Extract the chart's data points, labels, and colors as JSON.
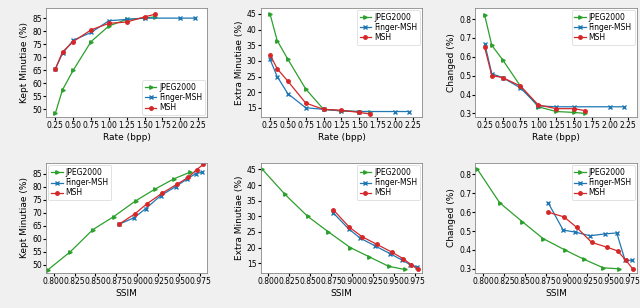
{
  "top_row": {
    "plot1": {
      "xlabel": "Rate (bpp)",
      "ylabel": "Kept Minutiae (%)",
      "xlim": [
        0.12,
        2.38
      ],
      "ylim": [
        47,
        89
      ],
      "xticks": [
        0.25,
        0.5,
        0.75,
        1.0,
        1.25,
        1.5,
        1.75,
        2.0,
        2.25
      ],
      "yticks": [
        50,
        55,
        60,
        65,
        70,
        75,
        80,
        85
      ],
      "series": {
        "JPEG2000": {
          "x": [
            0.25,
            0.35,
            0.5,
            0.75,
            1.0,
            1.25,
            1.5,
            1.65
          ],
          "y": [
            48.5,
            57.5,
            65.0,
            76.0,
            82.0,
            84.5,
            85.0,
            85.5
          ],
          "color": "#2ca02c",
          "marker": ">"
        },
        "Finger-MSH": {
          "x": [
            0.25,
            0.35,
            0.5,
            0.75,
            1.0,
            1.25,
            1.5,
            2.0,
            2.2
          ],
          "y": [
            65.5,
            71.5,
            76.5,
            79.5,
            84.0,
            84.5,
            85.0,
            85.0,
            85.0
          ],
          "color": "#1f77b4",
          "marker": "x"
        },
        "MSH": {
          "x": [
            0.25,
            0.35,
            0.5,
            0.75,
            1.0,
            1.25,
            1.5,
            1.65
          ],
          "y": [
            65.5,
            72.0,
            76.0,
            80.5,
            83.0,
            83.5,
            85.5,
            86.5
          ],
          "color": "#d62728",
          "marker": "o"
        }
      },
      "legend_loc": "lower right"
    },
    "plot2": {
      "xlabel": "Rate (bpp)",
      "ylabel": "Extra Minutiae (%)",
      "xlim": [
        0.12,
        2.38
      ],
      "ylim": [
        12,
        47
      ],
      "xticks": [
        0.25,
        0.5,
        0.75,
        1.0,
        1.25,
        1.5,
        1.75,
        2.0,
        2.25
      ],
      "yticks": [
        15,
        20,
        25,
        30,
        35,
        40,
        45
      ],
      "series": {
        "JPEG2000": {
          "x": [
            0.25,
            0.35,
            0.5,
            0.75,
            1.0,
            1.25,
            1.5,
            1.65
          ],
          "y": [
            45.0,
            36.5,
            30.5,
            21.0,
            14.5,
            14.0,
            13.8,
            13.8
          ],
          "color": "#2ca02c",
          "marker": ">"
        },
        "Finger-MSH": {
          "x": [
            0.25,
            0.35,
            0.5,
            0.75,
            1.0,
            1.25,
            1.5,
            2.0,
            2.2
          ],
          "y": [
            30.5,
            25.0,
            19.5,
            15.0,
            14.5,
            14.0,
            13.8,
            13.8,
            13.8
          ],
          "color": "#1f77b4",
          "marker": "x"
        },
        "MSH": {
          "x": [
            0.25,
            0.35,
            0.5,
            0.75,
            1.0,
            1.25,
            1.5,
            1.65
          ],
          "y": [
            32.0,
            27.5,
            23.5,
            16.5,
            14.5,
            14.2,
            13.5,
            13.0
          ],
          "color": "#d62728",
          "marker": "o"
        }
      },
      "legend_loc": "upper right"
    },
    "plot3": {
      "xlabel": "Rate (bpp)",
      "ylabel": "Changed (%)",
      "xlim": [
        0.12,
        2.38
      ],
      "ylim": [
        0.28,
        0.86
      ],
      "xticks": [
        0.25,
        0.5,
        0.75,
        1.0,
        1.25,
        1.5,
        1.75,
        2.0,
        2.25
      ],
      "yticks": [
        0.3,
        0.4,
        0.5,
        0.6,
        0.7,
        0.8
      ],
      "series": {
        "JPEG2000": {
          "x": [
            0.25,
            0.35,
            0.5,
            0.75,
            1.0,
            1.25,
            1.5,
            1.65
          ],
          "y": [
            0.82,
            0.66,
            0.585,
            0.445,
            0.335,
            0.31,
            0.305,
            0.3
          ],
          "color": "#2ca02c",
          "marker": ">"
        },
        "Finger-MSH": {
          "x": [
            0.25,
            0.35,
            0.5,
            0.75,
            1.0,
            1.25,
            1.5,
            2.0,
            2.2
          ],
          "y": [
            0.67,
            0.51,
            0.49,
            0.435,
            0.34,
            0.335,
            0.335,
            0.335,
            0.335
          ],
          "color": "#1f77b4",
          "marker": "x"
        },
        "MSH": {
          "x": [
            0.25,
            0.35,
            0.5,
            0.75,
            1.0,
            1.25,
            1.5,
            1.65
          ],
          "y": [
            0.65,
            0.5,
            0.49,
            0.445,
            0.345,
            0.325,
            0.325,
            0.315
          ],
          "color": "#d62728",
          "marker": "o"
        }
      },
      "legend_loc": "upper right"
    }
  },
  "bottom_row": {
    "plot4": {
      "xlabel": "SSIM",
      "ylabel": "Kept Minutiae (%)",
      "xlim": [
        0.791,
        0.984
      ],
      "ylim": [
        47,
        89
      ],
      "xticks": [
        0.8,
        0.825,
        0.85,
        0.875,
        0.9,
        0.925,
        0.95,
        0.975
      ],
      "yticks": [
        50,
        55,
        60,
        65,
        70,
        75,
        80,
        85
      ],
      "series": {
        "JPEG2000": {
          "x": [
            0.793,
            0.82,
            0.847,
            0.872,
            0.898,
            0.921,
            0.944,
            0.963
          ],
          "y": [
            48.0,
            55.0,
            63.5,
            68.5,
            74.5,
            79.0,
            83.0,
            85.5
          ],
          "color": "#2ca02c",
          "marker": ">"
        },
        "Finger-MSH": {
          "x": [
            0.878,
            0.896,
            0.91,
            0.928,
            0.946,
            0.96,
            0.97,
            0.978
          ],
          "y": [
            65.5,
            68.0,
            71.5,
            76.5,
            80.0,
            83.0,
            85.0,
            85.5
          ],
          "color": "#1f77b4",
          "marker": "x"
        },
        "MSH": {
          "x": [
            0.878,
            0.897,
            0.912,
            0.93,
            0.948,
            0.961,
            0.971,
            0.979
          ],
          "y": [
            65.5,
            69.5,
            73.5,
            77.5,
            81.0,
            83.5,
            86.5,
            88.5
          ],
          "color": "#d62728",
          "marker": "o"
        }
      },
      "legend_loc": "upper left"
    },
    "plot5": {
      "xlabel": "SSIM",
      "ylabel": "Extra Minutiae (%)",
      "xlim": [
        0.791,
        0.984
      ],
      "ylim": [
        12,
        47
      ],
      "xticks": [
        0.8,
        0.825,
        0.85,
        0.875,
        0.9,
        0.925,
        0.95,
        0.975
      ],
      "yticks": [
        15,
        20,
        25,
        30,
        35,
        40,
        45
      ],
      "series": {
        "JPEG2000": {
          "x": [
            0.793,
            0.82,
            0.847,
            0.872,
            0.898,
            0.921,
            0.944,
            0.963
          ],
          "y": [
            45.0,
            37.0,
            30.0,
            25.0,
            20.0,
            17.0,
            14.0,
            13.0
          ],
          "color": "#2ca02c",
          "marker": ">"
        },
        "Finger-MSH": {
          "x": [
            0.878,
            0.896,
            0.91,
            0.928,
            0.946,
            0.96,
            0.97,
            0.978
          ],
          "y": [
            31.0,
            26.0,
            23.0,
            20.5,
            18.0,
            16.0,
            14.5,
            13.8
          ],
          "color": "#1f77b4",
          "marker": "x"
        },
        "MSH": {
          "x": [
            0.878,
            0.897,
            0.912,
            0.93,
            0.948,
            0.961,
            0.971,
            0.979
          ],
          "y": [
            32.0,
            26.5,
            23.5,
            21.0,
            18.5,
            16.5,
            14.5,
            13.0
          ],
          "color": "#d62728",
          "marker": "o"
        }
      },
      "legend_loc": "upper right"
    },
    "plot6": {
      "xlabel": "SSIM",
      "ylabel": "Changed (%)",
      "xlim": [
        0.791,
        0.984
      ],
      "ylim": [
        0.28,
        0.86
      ],
      "xticks": [
        0.8,
        0.825,
        0.85,
        0.875,
        0.9,
        0.925,
        0.95,
        0.975
      ],
      "yticks": [
        0.3,
        0.4,
        0.5,
        0.6,
        0.7,
        0.8
      ],
      "series": {
        "JPEG2000": {
          "x": [
            0.793,
            0.82,
            0.847,
            0.872,
            0.898,
            0.921,
            0.944,
            0.963
          ],
          "y": [
            0.83,
            0.65,
            0.55,
            0.46,
            0.4,
            0.35,
            0.305,
            0.3
          ],
          "color": "#2ca02c",
          "marker": ">"
        },
        "Finger-MSH": {
          "x": [
            0.878,
            0.896,
            0.91,
            0.928,
            0.946,
            0.96,
            0.97,
            0.978
          ],
          "y": [
            0.65,
            0.505,
            0.495,
            0.475,
            0.485,
            0.49,
            0.345,
            0.345
          ],
          "color": "#1f77b4",
          "marker": "x"
        },
        "MSH": {
          "x": [
            0.878,
            0.897,
            0.912,
            0.93,
            0.948,
            0.961,
            0.971,
            0.979
          ],
          "y": [
            0.6,
            0.575,
            0.52,
            0.44,
            0.415,
            0.395,
            0.345,
            0.3
          ],
          "color": "#d62728",
          "marker": "o"
        }
      },
      "legend_loc": "upper right"
    }
  },
  "fig_background": "#f0f0f0",
  "axes_background": "#ffffff",
  "linewidth": 0.9,
  "markersize": 2.5,
  "legend_fontsize": 5.5,
  "tick_fontsize": 5.5,
  "label_fontsize": 6.5
}
